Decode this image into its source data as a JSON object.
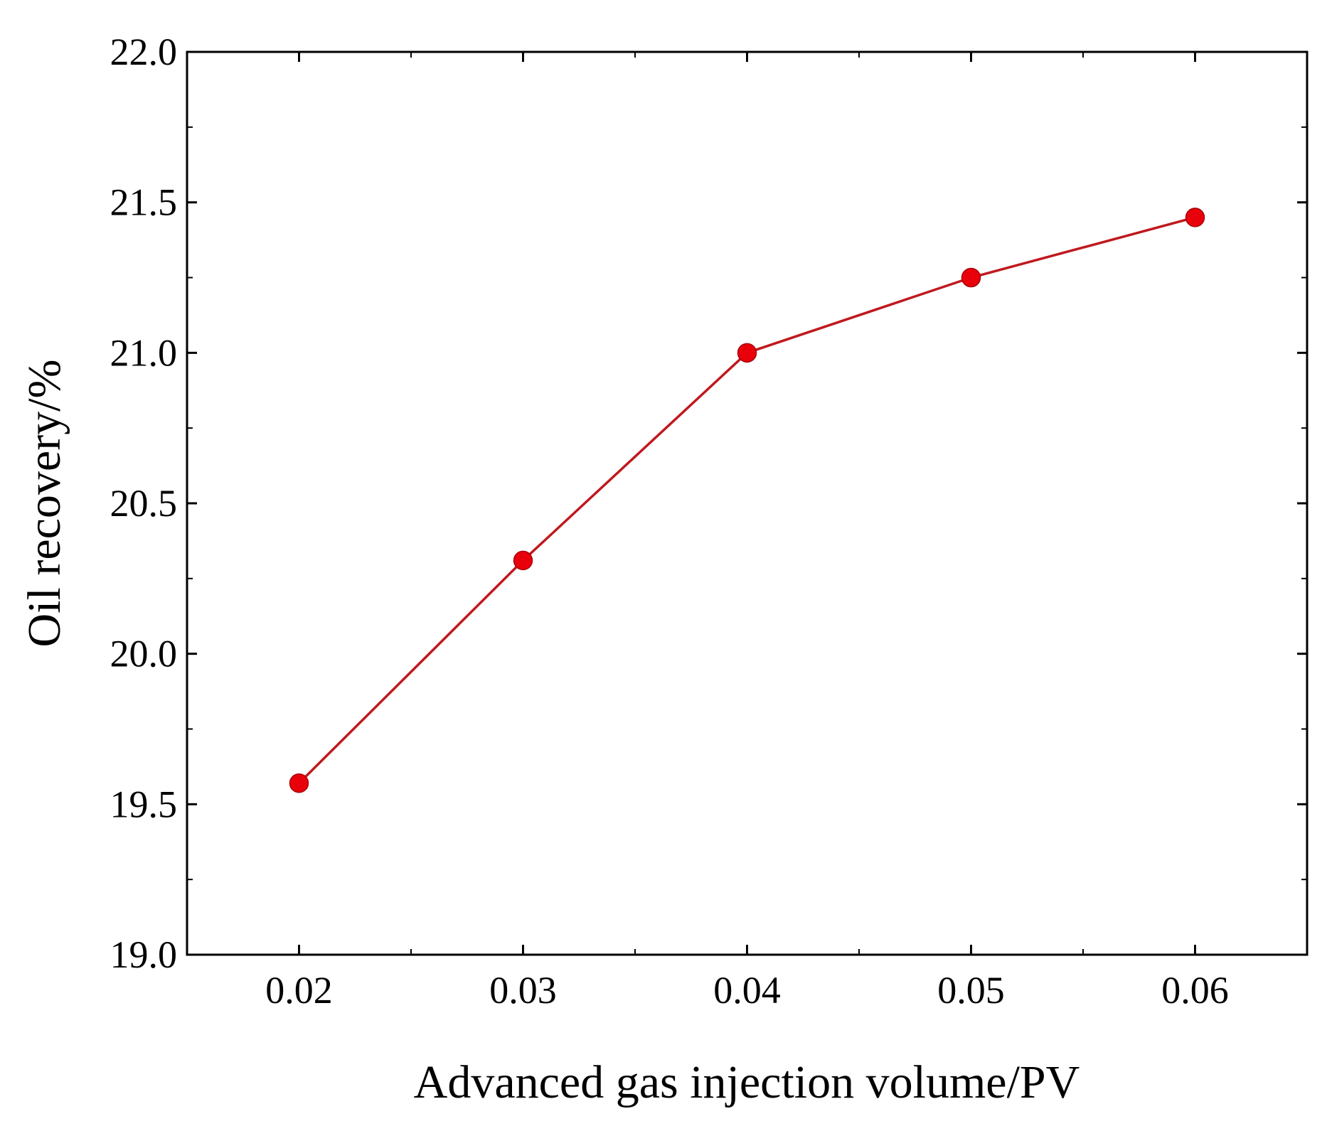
{
  "chart_data": {
    "type": "line",
    "title": "",
    "xlabel": "Advanced gas injection volume/PV",
    "ylabel": "Oil recovery/%",
    "x": [
      0.02,
      0.03,
      0.04,
      0.05,
      0.06
    ],
    "series": [
      {
        "values": [
          19.57,
          20.31,
          21.0,
          21.25,
          21.45
        ],
        "color": "#e8000b",
        "line_color": "#c0181e",
        "marker": "circle"
      }
    ],
    "xlim": [
      0.015,
      0.065
    ],
    "ylim": [
      19.0,
      22.0
    ],
    "x_ticks": [
      0.02,
      0.03,
      0.04,
      0.05,
      0.06
    ],
    "x_tick_labels": [
      "0.02",
      "0.03",
      "0.04",
      "0.05",
      "0.06"
    ],
    "y_ticks": [
      19.0,
      19.5,
      20.0,
      20.5,
      21.0,
      21.5,
      22.0
    ],
    "y_tick_labels": [
      "19.0",
      "19.5",
      "20.0",
      "20.5",
      "21.0",
      "21.5",
      "22.0"
    ],
    "grid": false,
    "legend": "none"
  }
}
